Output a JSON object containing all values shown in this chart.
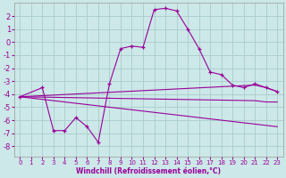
{
  "xlabel": "Windchill (Refroidissement éolien,°C)",
  "background_color": "#cce8e8",
  "grid_color": "#aacccc",
  "line_color": "#990099",
  "xlim": [
    -0.5,
    23.5
  ],
  "ylim": [
    -8.8,
    3.0
  ],
  "yticks": [
    2,
    1,
    0,
    -1,
    -2,
    -3,
    -4,
    -5,
    -6,
    -7,
    -8
  ],
  "xticks": [
    0,
    1,
    2,
    3,
    4,
    5,
    6,
    7,
    8,
    9,
    10,
    11,
    12,
    13,
    14,
    15,
    16,
    17,
    18,
    19,
    20,
    21,
    22,
    23
  ],
  "line1_x": [
    0,
    2,
    3,
    4,
    5,
    6,
    7,
    8,
    9,
    10,
    11,
    12,
    13,
    14,
    15,
    16,
    17,
    18,
    19,
    20,
    21,
    22,
    23
  ],
  "line1_y": [
    -4.2,
    -3.5,
    -6.8,
    -6.8,
    -5.8,
    -6.5,
    -7.7,
    -3.2,
    -0.5,
    -0.3,
    -0.4,
    2.5,
    2.6,
    2.4,
    1.0,
    -0.5,
    -2.3,
    -2.5,
    -3.3,
    -3.5,
    -3.2,
    -3.5,
    -3.8
  ],
  "line2_x": [
    0,
    21,
    22,
    23
  ],
  "line2_y": [
    -4.2,
    -3.3,
    -3.5,
    -3.8
  ],
  "line3_x": [
    0,
    21,
    22,
    23
  ],
  "line3_y": [
    -4.2,
    -4.5,
    -4.6,
    -4.6
  ],
  "line4_x": [
    0,
    23
  ],
  "line4_y": [
    -4.2,
    -6.5
  ],
  "marker": "+"
}
